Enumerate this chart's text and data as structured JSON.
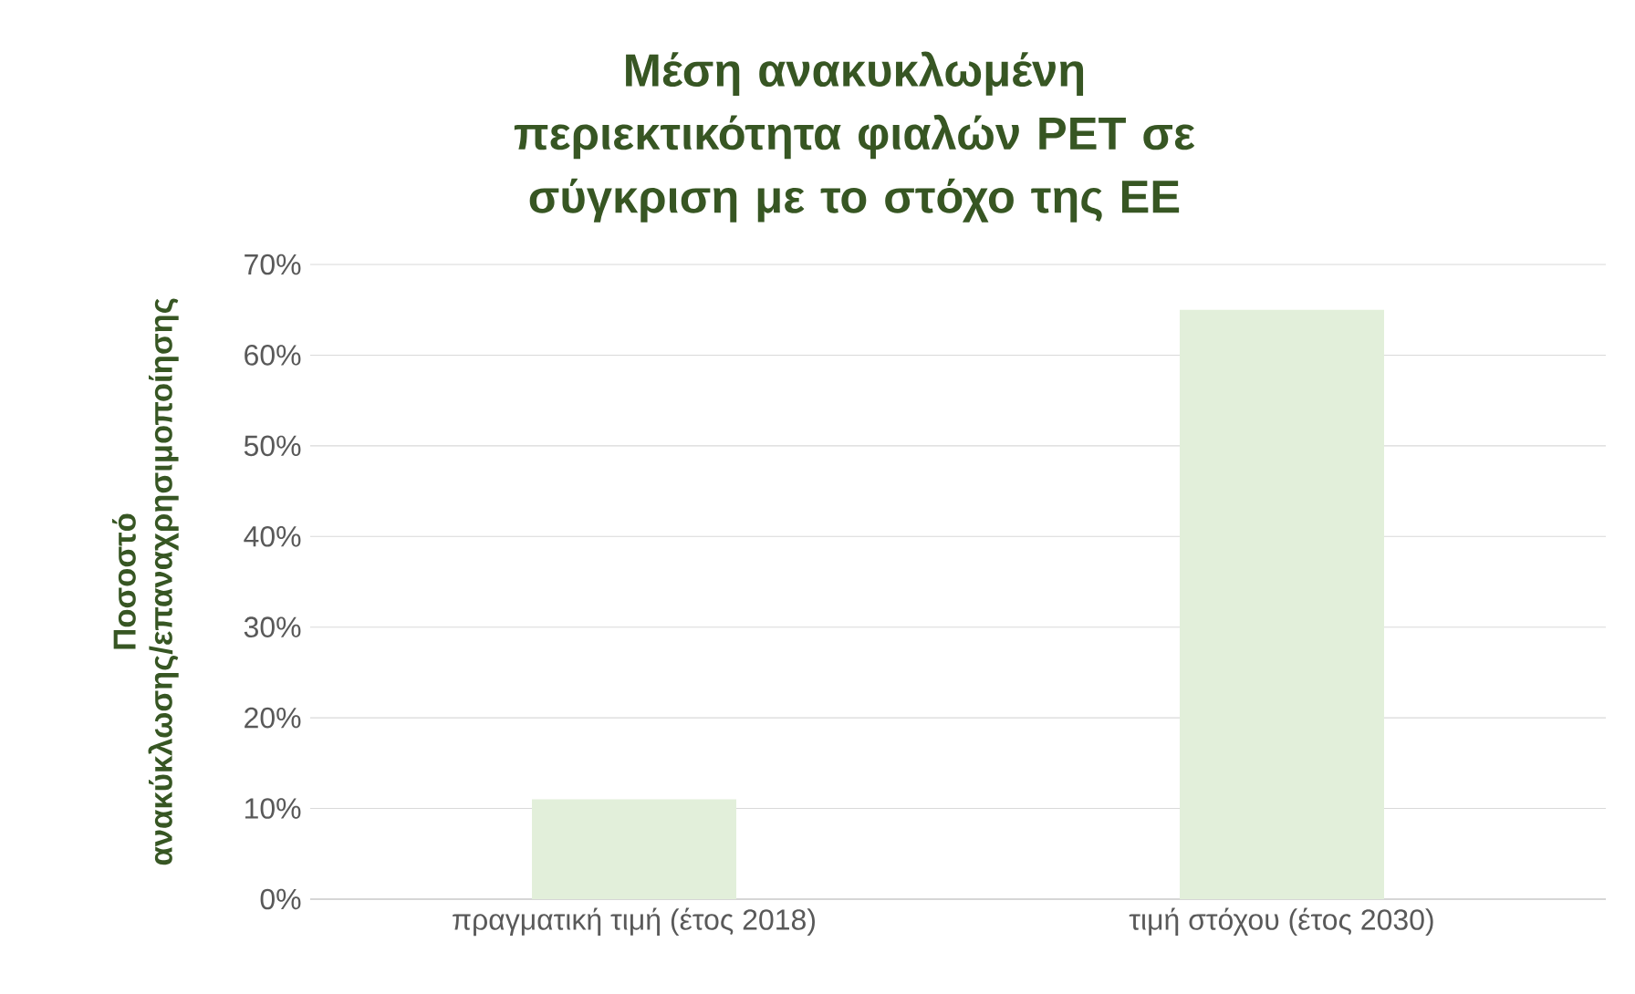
{
  "chart_data": {
    "type": "bar",
    "title": "Μέση ανακυκλωμένη περιεκτικότητα φιαλών PET σε σύγκριση με το στόχο της ΕΕ",
    "ylabel": "Ποσοστό ανακύκλωσης/επαναχρησιμοποίησης",
    "categories": [
      "πραγματική τιμή (έτος 2018)",
      "τιμή στόχου (έτος 2030)"
    ],
    "values": [
      11,
      65
    ],
    "color": "#e2efda",
    "ylim": [
      0,
      70
    ],
    "yticks": [
      {
        "value": 0,
        "label": "0%"
      },
      {
        "value": 10,
        "label": "10%"
      },
      {
        "value": 20,
        "label": "20%"
      },
      {
        "value": 30,
        "label": "30%"
      },
      {
        "value": 40,
        "label": "40%"
      },
      {
        "value": 50,
        "label": "50%"
      },
      {
        "value": 60,
        "label": "60%"
      },
      {
        "value": 70,
        "label": "70%"
      }
    ],
    "grid": "y"
  }
}
